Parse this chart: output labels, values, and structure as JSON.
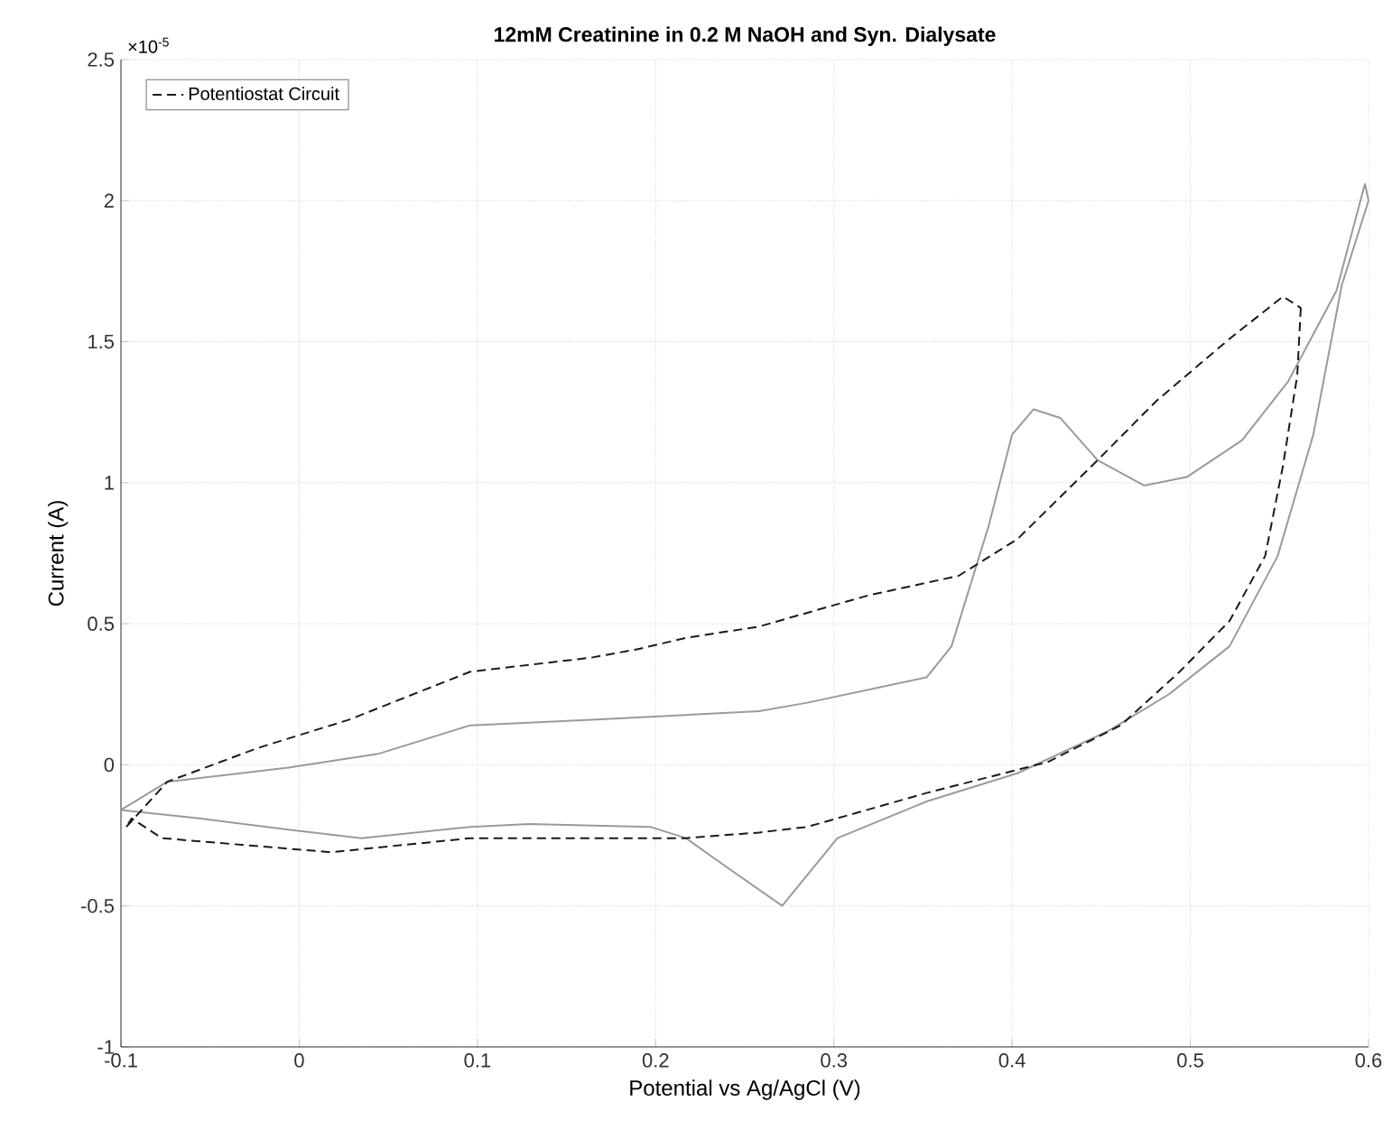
{
  "chart_data": {
    "type": "line",
    "title": "12mM Creatinine in 0.2 M NaOH and Syn. Dialysate",
    "xlabel": "Potential vs Ag/AgCl (V)",
    "ylabel": "Current (A)",
    "annotations": [
      "×10$^{-5}$"
    ],
    "xlim": [
      -0.1,
      0.6
    ],
    "ylim": [
      -1,
      2.5
    ],
    "xticks": [
      -0.1,
      0,
      0.1,
      0.2,
      0.3,
      0.4,
      0.5,
      0.6
    ],
    "yticks": [
      -1,
      -0.5,
      0,
      0.5,
      1,
      1.5,
      2,
      2.5
    ],
    "grid": true,
    "legend": "top left",
    "series": [
      {
        "color": "#9a9a9a",
        "line_style": "solid",
        "x": [
          -0.1,
          -0.074,
          -0.006,
          0.045,
          0.096,
          0.164,
          0.258,
          0.285,
          0.352,
          0.366,
          0.387,
          0.4,
          0.412,
          0.427,
          0.448,
          0.474,
          0.498,
          0.529,
          0.555,
          0.582,
          0.598
        ],
        "values": [
          -0.16,
          -0.06,
          -0.01,
          0.04,
          0.14,
          0.16,
          0.19,
          0.22,
          0.31,
          0.42,
          0.85,
          1.17,
          1.26,
          1.23,
          1.08,
          0.99,
          1.02,
          1.15,
          1.36,
          1.68,
          2.06
        ]
      },
      {
        "color": "#9a9a9a",
        "line_style": "solid",
        "x": [
          0.598,
          0.6,
          0.585,
          0.569,
          0.549,
          0.522,
          0.488,
          0.454,
          0.403,
          0.352,
          0.302,
          0.271,
          0.237,
          0.217,
          0.197,
          0.129,
          0.096,
          0.035,
          -0.006,
          -0.056,
          -0.1
        ],
        "values": [
          2.06,
          2.0,
          1.7,
          1.17,
          0.74,
          0.42,
          0.25,
          0.12,
          -0.03,
          -0.13,
          -0.26,
          -0.5,
          -0.35,
          -0.26,
          -0.22,
          -0.21,
          -0.22,
          -0.26,
          -0.23,
          -0.19,
          -0.16
        ]
      },
      {
        "name": "Potentiostat Circuit",
        "color": "#1a1a1a",
        "line_style": "dashed",
        "x": [
          -0.097,
          -0.074,
          -0.023,
          0.028,
          0.096,
          0.164,
          0.19,
          0.217,
          0.258,
          0.319,
          0.37,
          0.403,
          0.448,
          0.481,
          0.522,
          0.552,
          0.562
        ],
        "values": [
          -0.22,
          -0.06,
          0.06,
          0.16,
          0.33,
          0.38,
          0.41,
          0.45,
          0.49,
          0.6,
          0.67,
          0.8,
          1.08,
          1.29,
          1.51,
          1.66,
          1.62
        ]
      },
      {
        "color": "#1a1a1a",
        "line_style": "dashed",
        "x": [
          0.562,
          0.56,
          0.552,
          0.542,
          0.522,
          0.494,
          0.461,
          0.42,
          0.352,
          0.285,
          0.258,
          0.217,
          0.197,
          0.096,
          0.018,
          -0.039,
          -0.077,
          -0.094,
          -0.097
        ],
        "values": [
          1.62,
          1.38,
          1.06,
          0.74,
          0.51,
          0.33,
          0.14,
          0.01,
          -0.1,
          -0.22,
          -0.24,
          -0.26,
          -0.26,
          -0.26,
          -0.31,
          -0.28,
          -0.26,
          -0.19,
          -0.22
        ]
      }
    ]
  }
}
